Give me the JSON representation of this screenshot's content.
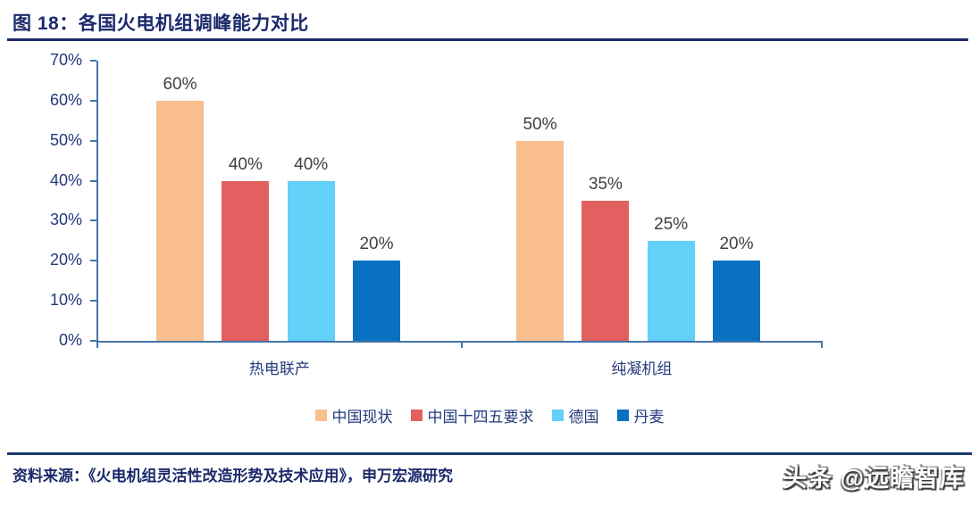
{
  "title": "图 18：各国火电机组调峰能力对比",
  "chart_data": {
    "type": "bar",
    "categories": [
      "热电联产",
      "纯凝机组"
    ],
    "series": [
      {
        "name": "中国现状",
        "color": "#F8BE8E",
        "values": [
          60,
          50
        ]
      },
      {
        "name": "中国十四五要求",
        "color": "#E2605F",
        "values": [
          40,
          35
        ]
      },
      {
        "name": "德国",
        "color": "#63D0F8",
        "values": [
          40,
          25
        ]
      },
      {
        "name": "丹麦",
        "color": "#0A70C0",
        "values": [
          20,
          20
        ]
      }
    ],
    "value_suffix": "%",
    "ylim": [
      0,
      70
    ],
    "ytick_step": 10,
    "ytick_labels": [
      "0%",
      "10%",
      "20%",
      "30%",
      "40%",
      "50%",
      "60%",
      "70%"
    ],
    "grid": false,
    "legend_position": "bottom",
    "data_labels_shown": true
  },
  "footer": {
    "source": "资料来源：《火电机组灵活性改造形势及技术应用》，申万宏源研究",
    "watermark": "头条 @远瞻智库"
  },
  "colors": {
    "title_text": "#1b2a6b",
    "axis_line": "#4575a8",
    "axis_tick_text": "#24397b",
    "data_label_text": "#3f3f3f",
    "rule_line": "#1b3a6b"
  }
}
